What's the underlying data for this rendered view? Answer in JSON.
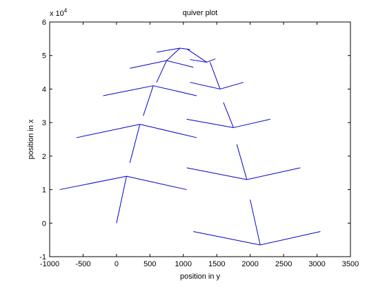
{
  "chart_data": {
    "type": "quiver",
    "title": "quiver plot",
    "xlabel": "position in y",
    "ylabel": "position in x",
    "y_exponent_base": "x 10",
    "y_exponent_power": "4",
    "xlim": [
      -1000,
      3500
    ],
    "ylim": [
      -1,
      6
    ],
    "xticks": [
      -1000,
      -500,
      0,
      500,
      1000,
      1500,
      2000,
      2500,
      3000,
      3500
    ],
    "xtick_labels": [
      "-1000",
      "-500",
      "0",
      "500",
      "1000",
      "1500",
      "2000",
      "2500",
      "3000",
      "3500"
    ],
    "yticks": [
      -1,
      0,
      1,
      2,
      3,
      4,
      5,
      6
    ],
    "ytick_labels": [
      "-1",
      "0",
      "1",
      "2",
      "3",
      "4",
      "5",
      "6"
    ],
    "grid": false,
    "color": "#0000cc",
    "segments": [
      [
        0,
        0,
        150,
        1.4
      ],
      [
        150,
        1.4,
        -850,
        1.0
      ],
      [
        150,
        1.4,
        1050,
        1.0
      ],
      [
        200,
        1.8,
        350,
        2.95
      ],
      [
        350,
        2.95,
        -600,
        2.55
      ],
      [
        350,
        2.95,
        1200,
        2.55
      ],
      [
        400,
        3.2,
        550,
        4.1
      ],
      [
        550,
        4.1,
        -200,
        3.8
      ],
      [
        550,
        4.1,
        1200,
        3.8
      ],
      [
        600,
        4.2,
        750,
        4.85
      ],
      [
        750,
        4.85,
        200,
        4.62
      ],
      [
        750,
        4.85,
        1150,
        4.65
      ],
      [
        600,
        5.1,
        950,
        5.22
      ],
      [
        950,
        5.22,
        750,
        4.85
      ],
      [
        950,
        5.22,
        1100,
        5.18
      ],
      [
        1050,
        5.2,
        1350,
        4.8
      ],
      [
        1350,
        4.8,
        1100,
        4.88
      ],
      [
        1350,
        4.8,
        1480,
        4.9
      ],
      [
        1400,
        4.8,
        1550,
        4.0
      ],
      [
        1550,
        4.0,
        1100,
        4.2
      ],
      [
        1550,
        4.0,
        1900,
        4.2
      ],
      [
        1600,
        3.6,
        1750,
        2.85
      ],
      [
        1750,
        2.85,
        1050,
        3.1
      ],
      [
        1750,
        2.85,
        2300,
        3.1
      ],
      [
        1800,
        2.35,
        1950,
        1.3
      ],
      [
        1950,
        1.3,
        1050,
        1.65
      ],
      [
        1950,
        1.3,
        2750,
        1.65
      ],
      [
        2000,
        0.7,
        2150,
        -0.65
      ],
      [
        2150,
        -0.65,
        1150,
        -0.25
      ],
      [
        2150,
        -0.65,
        3050,
        -0.25
      ]
    ]
  }
}
